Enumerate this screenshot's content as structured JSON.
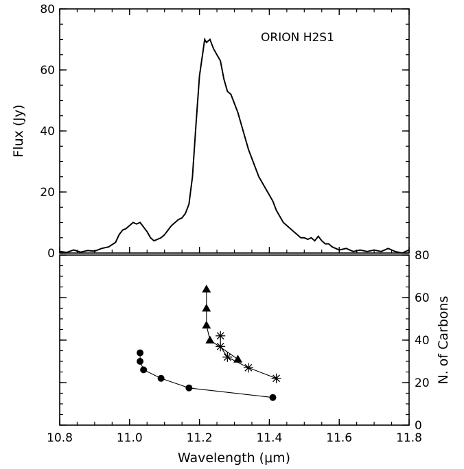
{
  "chart_data": [
    {
      "type": "line",
      "annotation": "ORION H2S1",
      "xlabel": "Wavelength (μm)",
      "ylabel": "Flux (Jy)",
      "xlim": [
        10.8,
        11.8
      ],
      "ylim": [
        0,
        80
      ],
      "x_ticks": [
        "10.8",
        "11.0",
        "11.2",
        "11.4",
        "11.6",
        "11.8"
      ],
      "y_ticks": [
        "0",
        "20",
        "40",
        "60",
        "80"
      ],
      "series": [
        {
          "values": [
            [
              10.8,
              0.5
            ],
            [
              10.82,
              0.2
            ],
            [
              10.84,
              1.0
            ],
            [
              10.86,
              0.3
            ],
            [
              10.88,
              0.8
            ],
            [
              10.9,
              0.6
            ],
            [
              10.92,
              1.5
            ],
            [
              10.94,
              2.0
            ],
            [
              10.96,
              3.5
            ],
            [
              10.97,
              6.0
            ],
            [
              10.98,
              7.5
            ],
            [
              10.99,
              8.0
            ],
            [
              11.0,
              9.0
            ],
            [
              11.01,
              10.0
            ],
            [
              11.02,
              9.5
            ],
            [
              11.03,
              10.0
            ],
            [
              11.04,
              8.5
            ],
            [
              11.05,
              7.0
            ],
            [
              11.06,
              5.0
            ],
            [
              11.07,
              4.0
            ],
            [
              11.08,
              4.5
            ],
            [
              11.09,
              5.0
            ],
            [
              11.1,
              6.0
            ],
            [
              11.11,
              7.5
            ],
            [
              11.12,
              9.0
            ],
            [
              11.13,
              10.0
            ],
            [
              11.14,
              11.0
            ],
            [
              11.15,
              11.5
            ],
            [
              11.16,
              13.0
            ],
            [
              11.17,
              16.0
            ],
            [
              11.18,
              25.0
            ],
            [
              11.19,
              42.0
            ],
            [
              11.2,
              58.0
            ],
            [
              11.21,
              66.0
            ],
            [
              11.215,
              70.0
            ],
            [
              11.22,
              69.0
            ],
            [
              11.23,
              70.0
            ],
            [
              11.24,
              67.0
            ],
            [
              11.25,
              65.0
            ],
            [
              11.26,
              63.0
            ],
            [
              11.27,
              57.0
            ],
            [
              11.28,
              53.0
            ],
            [
              11.29,
              52.0
            ],
            [
              11.3,
              49.0
            ],
            [
              11.31,
              46.0
            ],
            [
              11.32,
              42.0
            ],
            [
              11.33,
              38.0
            ],
            [
              11.34,
              34.0
            ],
            [
              11.35,
              31.0
            ],
            [
              11.36,
              28.0
            ],
            [
              11.37,
              25.0
            ],
            [
              11.38,
              23.0
            ],
            [
              11.39,
              21.0
            ],
            [
              11.4,
              19.0
            ],
            [
              11.41,
              17.0
            ],
            [
              11.42,
              14.0
            ],
            [
              11.43,
              12.0
            ],
            [
              11.44,
              10.0
            ],
            [
              11.45,
              9.0
            ],
            [
              11.46,
              8.0
            ],
            [
              11.47,
              7.0
            ],
            [
              11.48,
              6.0
            ],
            [
              11.49,
              5.0
            ],
            [
              11.5,
              5.0
            ],
            [
              11.51,
              4.5
            ],
            [
              11.52,
              5.0
            ],
            [
              11.53,
              4.0
            ],
            [
              11.54,
              5.5
            ],
            [
              11.55,
              4.0
            ],
            [
              11.56,
              3.0
            ],
            [
              11.57,
              3.0
            ],
            [
              11.58,
              2.0
            ],
            [
              11.6,
              1.0
            ],
            [
              11.62,
              1.5
            ],
            [
              11.64,
              0.5
            ],
            [
              11.66,
              1.0
            ],
            [
              11.68,
              0.5
            ],
            [
              11.7,
              1.0
            ],
            [
              11.72,
              0.5
            ],
            [
              11.74,
              1.5
            ],
            [
              11.76,
              0.5
            ],
            [
              11.78,
              0.0
            ],
            [
              11.8,
              1.0
            ]
          ]
        }
      ]
    },
    {
      "type": "scatter",
      "xlabel": "Wavelength (μm)",
      "ylabel": "N. of Carbons",
      "xlim": [
        10.8,
        11.8
      ],
      "ylim": [
        0,
        80
      ],
      "x_ticks": [
        "10.8",
        "11.0",
        "11.2",
        "11.4",
        "11.6",
        "11.8"
      ],
      "y_ticks": [
        "0",
        "20",
        "40",
        "60",
        "80"
      ],
      "series": [
        {
          "marker": "circle",
          "values": [
            [
              11.03,
              34
            ],
            [
              11.03,
              30
            ],
            [
              11.04,
              26
            ],
            [
              11.09,
              22
            ],
            [
              11.17,
              17.5
            ],
            [
              11.41,
              13
            ]
          ]
        },
        {
          "marker": "triangle",
          "values": [
            [
              11.22,
              64
            ],
            [
              11.22,
              55
            ],
            [
              11.22,
              47
            ],
            [
              11.23,
              40
            ],
            [
              11.31,
              31
            ]
          ]
        },
        {
          "marker": "asterisk",
          "values": [
            [
              11.26,
              42
            ],
            [
              11.26,
              37
            ],
            [
              11.28,
              32
            ],
            [
              11.34,
              27
            ],
            [
              11.42,
              22
            ]
          ]
        }
      ]
    }
  ]
}
